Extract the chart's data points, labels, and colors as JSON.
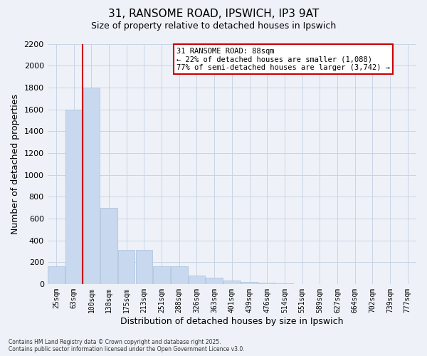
{
  "title_line1": "31, RANSOME ROAD, IPSWICH, IP3 9AT",
  "title_line2": "Size of property relative to detached houses in Ipswich",
  "xlabel": "Distribution of detached houses by size in Ipswich",
  "ylabel": "Number of detached properties",
  "categories": [
    "25sqm",
    "63sqm",
    "100sqm",
    "138sqm",
    "175sqm",
    "213sqm",
    "251sqm",
    "288sqm",
    "326sqm",
    "363sqm",
    "401sqm",
    "439sqm",
    "476sqm",
    "514sqm",
    "551sqm",
    "589sqm",
    "627sqm",
    "664sqm",
    "702sqm",
    "739sqm",
    "777sqm"
  ],
  "values": [
    160,
    1600,
    1800,
    700,
    310,
    310,
    165,
    165,
    80,
    55,
    30,
    20,
    10,
    5,
    0,
    0,
    0,
    0,
    0,
    0,
    0
  ],
  "bar_color": "#c8d8ee",
  "bar_edge_color": "#a8c0dc",
  "grid_color": "#c8d4e4",
  "vline_color": "#cc0000",
  "vline_x": 1.5,
  "annotation_text": "31 RANSOME ROAD: 88sqm\n← 22% of detached houses are smaller (1,088)\n77% of semi-detached houses are larger (3,742) →",
  "annotation_box_color": "#ffffff",
  "annotation_box_edge": "#cc0000",
  "ylim": [
    0,
    2200
  ],
  "yticks": [
    0,
    200,
    400,
    600,
    800,
    1000,
    1200,
    1400,
    1600,
    1800,
    2000,
    2200
  ],
  "footnote": "Contains HM Land Registry data © Crown copyright and database right 2025.\nContains public sector information licensed under the Open Government Licence v3.0.",
  "bg_color": "#eef2f8"
}
